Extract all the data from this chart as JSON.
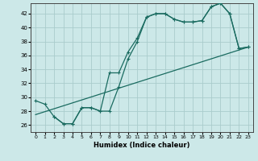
{
  "xlabel": "Humidex (Indice chaleur)",
  "bg_color": "#cce8e8",
  "grid_color": "#aacccc",
  "line_color": "#1a6b60",
  "xlim": [
    -0.5,
    23.5
  ],
  "ylim": [
    25,
    43.5
  ],
  "yticks": [
    26,
    28,
    30,
    32,
    34,
    36,
    38,
    40,
    42
  ],
  "xticks": [
    0,
    1,
    2,
    3,
    4,
    5,
    6,
    7,
    8,
    9,
    10,
    11,
    12,
    13,
    14,
    15,
    16,
    17,
    18,
    19,
    20,
    21,
    22,
    23
  ],
  "line1_x": [
    0,
    1,
    2,
    3,
    4,
    5,
    6,
    7,
    8,
    9,
    10,
    11,
    12,
    13,
    14,
    15,
    16,
    17,
    18,
    19,
    20,
    21,
    22,
    23
  ],
  "line1_y": [
    29.5,
    29.0,
    27.2,
    26.2,
    26.2,
    28.5,
    28.5,
    28.0,
    28.0,
    31.5,
    35.5,
    38.0,
    41.5,
    42.0,
    42.0,
    41.2,
    40.8,
    40.8,
    41.0,
    43.0,
    43.5,
    42.0,
    37.0,
    37.2
  ],
  "line2_x": [
    2,
    3,
    4,
    5,
    6,
    7,
    8,
    9,
    10,
    11,
    12,
    13,
    14,
    15,
    16,
    17,
    18,
    19,
    20,
    21,
    22,
    23
  ],
  "line2_y": [
    27.2,
    26.2,
    26.2,
    28.5,
    28.5,
    28.0,
    33.5,
    33.5,
    36.5,
    38.5,
    41.5,
    42.0,
    42.0,
    41.2,
    40.8,
    40.8,
    41.0,
    43.0,
    43.5,
    42.0,
    37.0,
    37.2
  ],
  "line3_x": [
    0,
    23
  ],
  "line3_y": [
    27.5,
    37.2
  ]
}
